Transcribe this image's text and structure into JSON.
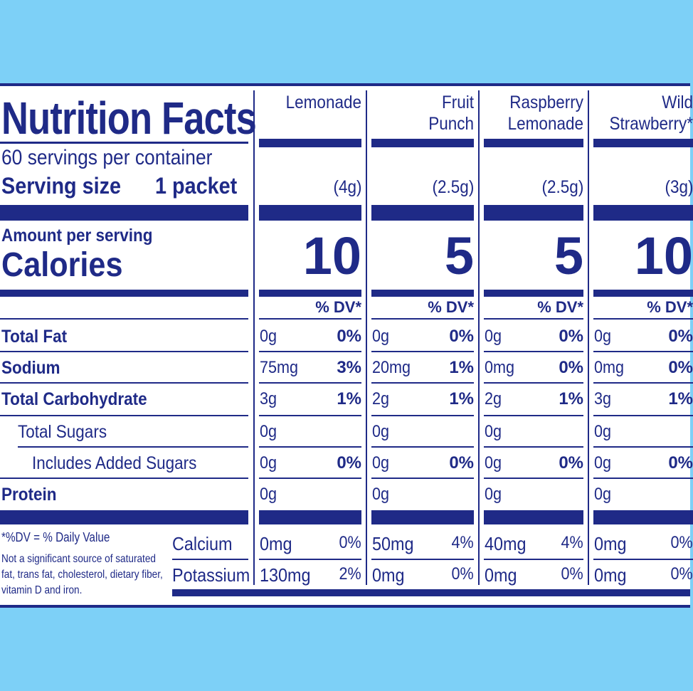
{
  "label": {
    "title": "Nutrition Facts",
    "servings_per_container": "60 servings per container",
    "serving_size_label": "Serving size",
    "serving_size_value": "1 packet",
    "amount_per_serving": "Amount per serving",
    "calories_label": "Calories",
    "dv_header": "% DV*",
    "colors": {
      "ink": "#1f2a87",
      "background": "#7dd0f7",
      "panel": "#ffffff"
    }
  },
  "flavors": [
    {
      "name_line1": "Lemonade",
      "name_line2": "",
      "weight": "(4g)",
      "calories": "10",
      "total_fat": "0g",
      "total_fat_dv": "0%",
      "sodium": "75mg",
      "sodium_dv": "3%",
      "carb": "3g",
      "carb_dv": "1%",
      "sugars": "0g",
      "added_sugars": "0g",
      "added_sugars_dv": "0%",
      "protein": "0g",
      "calcium": "0mg",
      "calcium_dv": "0%",
      "potassium": "130mg",
      "potassium_dv": "2%"
    },
    {
      "name_line1": "Fruit",
      "name_line2": "Punch",
      "weight": "(2.5g)",
      "calories": "5",
      "total_fat": "0g",
      "total_fat_dv": "0%",
      "sodium": "20mg",
      "sodium_dv": "1%",
      "carb": "2g",
      "carb_dv": "1%",
      "sugars": "0g",
      "added_sugars": "0g",
      "added_sugars_dv": "0%",
      "protein": "0g",
      "calcium": "50mg",
      "calcium_dv": "4%",
      "potassium": "0mg",
      "potassium_dv": "0%"
    },
    {
      "name_line1": "Raspberry",
      "name_line2": "Lemonade",
      "weight": "(2.5g)",
      "calories": "5",
      "total_fat": "0g",
      "total_fat_dv": "0%",
      "sodium": "0mg",
      "sodium_dv": "0%",
      "carb": "2g",
      "carb_dv": "1%",
      "sugars": "0g",
      "added_sugars": "0g",
      "added_sugars_dv": "0%",
      "protein": "0g",
      "calcium": "40mg",
      "calcium_dv": "4%",
      "potassium": "0mg",
      "potassium_dv": "0%"
    },
    {
      "name_line1": "Wild",
      "name_line2": "Strawberry*",
      "weight": "(3g)",
      "calories": "10",
      "total_fat": "0g",
      "total_fat_dv": "0%",
      "sodium": "0mg",
      "sodium_dv": "0%",
      "carb": "3g",
      "carb_dv": "1%",
      "sugars": "0g",
      "added_sugars": "0g",
      "added_sugars_dv": "0%",
      "protein": "0g",
      "calcium": "0mg",
      "calcium_dv": "0%",
      "potassium": "0mg",
      "potassium_dv": "0%"
    }
  ],
  "nutrients": {
    "total_fat": "Total Fat",
    "sodium": "Sodium",
    "total_carbohydrate": "Total Carbohydrate",
    "total_sugars": "Total Sugars",
    "added_sugars": "Includes Added Sugars",
    "protein": "Protein",
    "calcium": "Calcium",
    "potassium": "Potassium"
  },
  "footnote": {
    "dv_definition": "*%DV = % Daily Value",
    "not_significant": "Not a significant source of saturated fat, trans fat, cholesterol, dietary fiber, vitamin D and iron."
  }
}
